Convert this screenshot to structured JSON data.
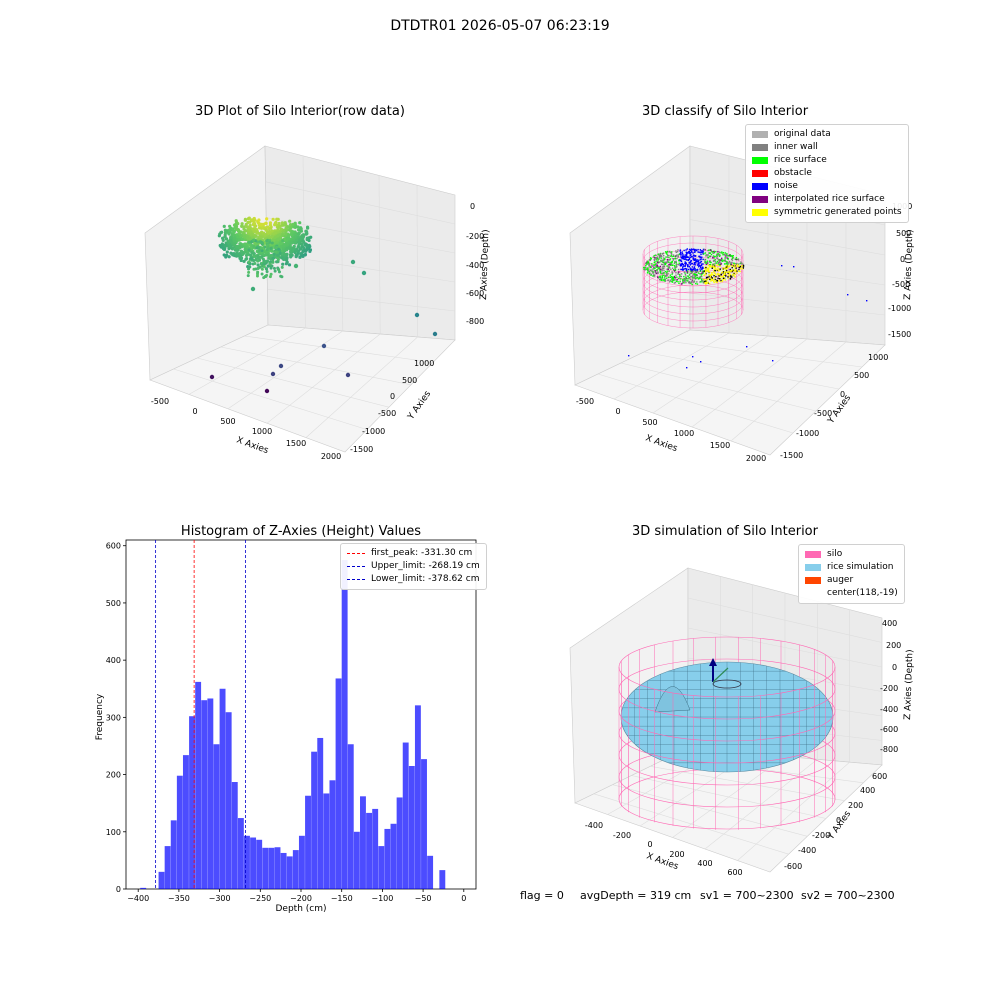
{
  "suptitle": "DTDTR01 2026-05-07 06:23:19",
  "panels": {
    "raw": {
      "title": "3D Plot of Silo Interior(row data)",
      "xlabel": "X Axies",
      "ylabel": "Y Axies",
      "zlabel": "Z Axies (Depth)",
      "xticks": [
        "-500",
        "0",
        "500",
        "1000",
        "1500",
        "2000"
      ],
      "yticks": [
        "1000",
        "500",
        "0",
        "-500",
        "-1000",
        "-1500"
      ],
      "zticks": [
        "0",
        "-200",
        "-400",
        "-600",
        "-800"
      ]
    },
    "classify": {
      "title": "3D classify of Silo Interior",
      "xlabel": "X Axies",
      "ylabel": "Y Axies",
      "zlabel": "Z Axies (Depth)",
      "xticks": [
        "-500",
        "0",
        "500",
        "1000",
        "1500",
        "2000"
      ],
      "yticks": [
        "1000",
        "500",
        "0",
        "-500",
        "-1000",
        "-1500"
      ],
      "zticks": [
        "1000",
        "500",
        "0",
        "-500",
        "-1000",
        "-1500"
      ],
      "legend": [
        {
          "label": "original data",
          "color": "#b0b0b0"
        },
        {
          "label": "inner wall",
          "color": "#808080"
        },
        {
          "label": "rice surface",
          "color": "#00ff00"
        },
        {
          "label": "obstacle",
          "color": "#ff0000"
        },
        {
          "label": "noise",
          "color": "#0000ff"
        },
        {
          "label": "interpolated rice surface",
          "color": "#800080"
        },
        {
          "label": "symmetric generated points",
          "color": "#ffff00"
        }
      ]
    },
    "simulation": {
      "title": "3D simulation of Silo Interior",
      "xlabel": "X Axies",
      "ylabel": "Y Axies",
      "zlabel": "Z Axies (Depth)",
      "xticks": [
        "-400",
        "-200",
        "0",
        "200",
        "400",
        "600"
      ],
      "yticks": [
        "600",
        "400",
        "200",
        "0",
        "-200",
        "-400",
        "-600"
      ],
      "zticks": [
        "400",
        "200",
        "0",
        "-200",
        "-400",
        "-600",
        "-800"
      ],
      "legend": [
        {
          "label": "silo",
          "color": "#ff69b4"
        },
        {
          "label": "rice simulation",
          "color": "#87ceeb"
        },
        {
          "label": "auger",
          "color": "#ff4500"
        },
        {
          "label": "center(118,-19)",
          "color": ""
        }
      ]
    }
  },
  "chart_data": {
    "type": "bar",
    "title": "Histogram of Z-Axies (Height) Values",
    "xlabel": "Depth (cm)",
    "ylabel": "Frequency",
    "xlim": [
      -415,
      15
    ],
    "ylim": [
      0,
      610
    ],
    "xticks": [
      -400,
      -350,
      -300,
      -250,
      -200,
      -150,
      -100,
      -50,
      0
    ],
    "yticks": [
      0,
      100,
      200,
      300,
      400,
      500,
      600
    ],
    "bar_color": "#0000ff",
    "bin_width": 7.5,
    "bins_start": [
      -397.5,
      -390,
      -382.5,
      -375,
      -367.5,
      -360,
      -352.5,
      -345,
      -337.5,
      -330,
      -322.5,
      -315,
      -307.5,
      -300,
      -292.5,
      -285,
      -277.5,
      -270,
      -262.5,
      -255,
      -247.5,
      -240,
      -232.5,
      -225,
      -217.5,
      -210,
      -202.5,
      -195,
      -187.5,
      -180,
      -172.5,
      -165,
      -157.5,
      -150,
      -142.5,
      -135,
      -127.5,
      -120,
      -112.5,
      -105,
      -97.5,
      -90,
      -82.5,
      -75,
      -67.5,
      -60,
      -52.5,
      -45,
      -37.5,
      -30,
      -22.5,
      -15,
      -7.5
    ],
    "values": [
      2,
      0,
      0,
      30,
      75,
      120,
      198,
      234,
      302,
      362,
      330,
      333,
      253,
      350,
      309,
      187,
      124,
      93,
      90,
      86,
      72,
      72,
      73,
      63,
      57,
      68,
      93,
      163,
      240,
      264,
      167,
      190,
      368,
      575,
      253,
      100,
      162,
      133,
      140,
      75,
      105,
      114,
      160,
      256,
      215,
      321,
      227,
      58,
      0,
      33,
      0,
      0,
      0
    ],
    "vlines": [
      {
        "label": "first_peak: -331.30 cm",
        "x": -331.3,
        "color": "#ff0000"
      },
      {
        "label": "Upper_limit: -268.19 cm",
        "x": -268.19,
        "color": "#0000cc"
      },
      {
        "label": "Lower_limit: -378.62 cm",
        "x": -378.62,
        "color": "#0000cc"
      }
    ],
    "legend_position": "top-right"
  },
  "footer": {
    "flag": "flag = 0",
    "avg": "avgDepth = 319 cm",
    "sv1": "sv1 = 700~2300",
    "sv2": "sv2 = 700~2300"
  }
}
